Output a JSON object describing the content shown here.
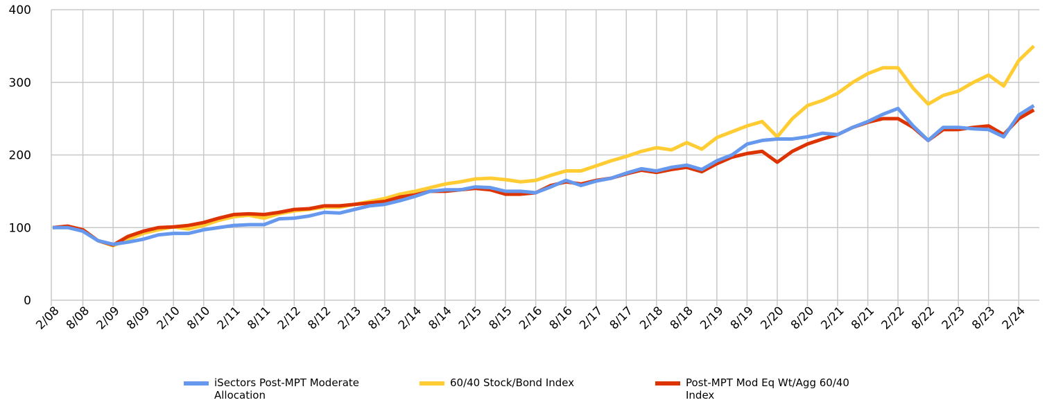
{
  "chart_data": {
    "type": "line",
    "categories": [
      "2/08",
      null,
      "8/08",
      null,
      "2/09",
      null,
      "8/09",
      null,
      "2/10",
      null,
      "8/10",
      null,
      "2/11",
      null,
      "8/11",
      null,
      "2/12",
      null,
      "8/12",
      null,
      "2/13",
      null,
      "8/13",
      null,
      "2/14",
      null,
      "8/14",
      null,
      "2/15",
      null,
      "8/15",
      null,
      "2/16",
      null,
      "8/16",
      null,
      "2/17",
      null,
      "8/17",
      null,
      "2/18",
      null,
      "8/18",
      null,
      "2/19",
      null,
      "8/19",
      null,
      "2/20",
      null,
      "8/20",
      null,
      "2/21",
      null,
      "8/21",
      null,
      "2/22",
      null,
      "8/22",
      null,
      "2/23",
      null,
      "8/23",
      null,
      "2/24",
      null
    ],
    "series": [
      {
        "name": "iSectors Post-MPT Moderate Allocation",
        "color": "#6699ee",
        "values": [
          100,
          100,
          95,
          82,
          77,
          80,
          84,
          90,
          92,
          92,
          97,
          100,
          103,
          104,
          104,
          112,
          113,
          116,
          121,
          120,
          125,
          130,
          132,
          137,
          143,
          150,
          152,
          152,
          156,
          155,
          150,
          150,
          148,
          156,
          165,
          158,
          164,
          168,
          175,
          181,
          178,
          183,
          186,
          180,
          192,
          200,
          215,
          220,
          222,
          222,
          225,
          230,
          228,
          238,
          246,
          256,
          264,
          240,
          220,
          238,
          238,
          236,
          235,
          225,
          255,
          268
        ]
      },
      {
        "name": "60/40 Stock/Bond Index",
        "color": "#ffcc33",
        "values": [
          100,
          101,
          97,
          82,
          75,
          84,
          92,
          97,
          101,
          98,
          103,
          110,
          115,
          117,
          113,
          119,
          123,
          125,
          128,
          128,
          132,
          136,
          140,
          146,
          150,
          155,
          160,
          163,
          167,
          168,
          166,
          163,
          165,
          172,
          178,
          178,
          185,
          192,
          198,
          205,
          210,
          207,
          217,
          208,
          224,
          232,
          240,
          246,
          225,
          250,
          268,
          275,
          285,
          300,
          312,
          320,
          320,
          292,
          270,
          282,
          288,
          300,
          310,
          295,
          330,
          350
        ]
      },
      {
        "name": "Post-MPT Mod Eq Wt/Agg 60/40 Index",
        "color": "#dd3300",
        "values": [
          100,
          102,
          97,
          82,
          76,
          88,
          95,
          100,
          101,
          103,
          107,
          113,
          118,
          119,
          118,
          121,
          125,
          126,
          130,
          130,
          132,
          134,
          136,
          142,
          145,
          150,
          150,
          152,
          154,
          152,
          146,
          146,
          148,
          158,
          163,
          160,
          165,
          168,
          174,
          179,
          176,
          180,
          183,
          177,
          188,
          197,
          202,
          205,
          190,
          205,
          215,
          222,
          228,
          238,
          245,
          250,
          250,
          238,
          220,
          235,
          235,
          238,
          240,
          228,
          250,
          262
        ]
      }
    ],
    "ylim": [
      0,
      400
    ],
    "yticks": [
      0,
      100,
      200,
      300,
      400
    ],
    "grid": true
  }
}
